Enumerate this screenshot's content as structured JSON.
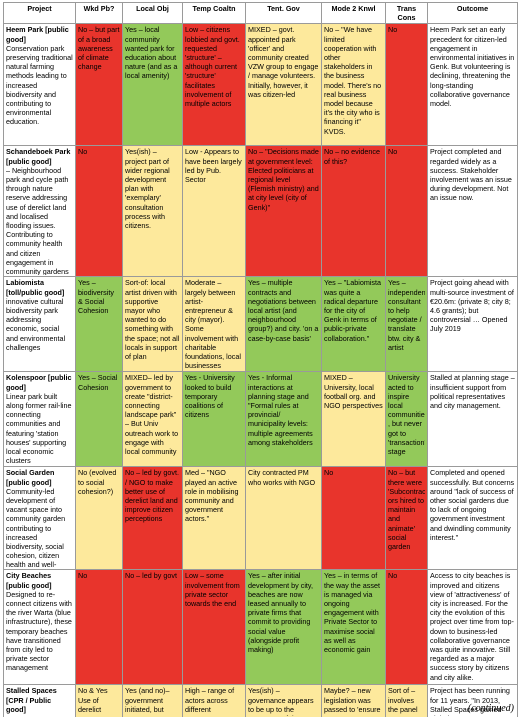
{
  "table": {
    "header": [
      "Project",
      "Wkd Pb?",
      "Local Obj",
      "Temp Coaltn",
      "Tent. Gov",
      "Mode 2 Knwl",
      "Trans Cons",
      "Outcome"
    ],
    "rows": [
      {
        "name": "Heem Park [public good]",
        "description": "Conservation park preserving traditional natural farming methods leading to increased biodiversity and contributing to environmental education.",
        "cells": [
          {
            "text": "No – but part of a broad awareness of climate change",
            "color": "red"
          },
          {
            "text": "Yes – local community wanted park for education about nature (and as a local amenity)",
            "color": "green"
          },
          {
            "text": "Low – citizens lobbied and govt. requested 'structure' – although current 'structure' facilitates involvement of multiple actors",
            "color": "red"
          },
          {
            "text": "MIXED – govt. appointed park 'officer' and community created VZW group to engage / manage volunteers. Initially, however, it was citizen-led",
            "color": "yellow"
          },
          {
            "text": "No – \"We have limited cooperation with other stakeholders in the business model. There's no real business model because it's the city who is financing it\" KVDS.",
            "color": "yellow"
          },
          {
            "text": "No",
            "color": "red"
          }
        ],
        "outcome": "Heem Park set an early precedent for citizen-led engagement in environmental initiatives in Genk. But volunteering is declining, threatening the long-standing collaborative governance model."
      },
      {
        "name": "Schandeboek Park [public good]",
        "description": "– Neighbourhood park and cycle path through nature reserve addressing use of derelict land and localised flooding issues. Contributing to community health and citizen engagement in community gardens",
        "cells": [
          {
            "text": "No",
            "color": "red"
          },
          {
            "text": "Yes(ish) – project part of wider regional development plan with 'exemplary' consultation process with citizens.",
            "color": "yellow"
          },
          {
            "text": "Low - Appears to have been largely led by Pub. Sector",
            "color": "yellow"
          },
          {
            "text": "No – \"Decisions made at government level: Elected politicians at regional level (Flemish ministry) and at city level (city of Genk)\"",
            "color": "red"
          },
          {
            "text": "No – no evidence of this?",
            "color": "red"
          },
          {
            "text": "No",
            "color": "red"
          }
        ],
        "outcome": "Project completed and regarded widely as a success. Stakeholder involvement was an issue during development. Not an issue now."
      },
      {
        "name": "Labiomista [toll/public good]",
        "description": "innovative cultural biodiversity park addressing economic, social and environmental challenges",
        "cells": [
          {
            "text": "Yes – biodiversity & Social Cohesion",
            "color": "green"
          },
          {
            "text": "Sort-of: local artist driven with supportive mayor who wanted to do something with the space; not all locals in support of plan",
            "color": "yellow"
          },
          {
            "text": "Moderate – largely between artist-entrepreneur & city (mayor). Some involvement with charitable foundations, local businesses",
            "color": "yellow"
          },
          {
            "text": "Yes – multiple contracts and negotiations between local artist (and neighbourhood group?) and city. 'on a case-by-case basis'",
            "color": "green"
          },
          {
            "text": "Yes – \"Labiomista was quite a radical departure for the city of Genk in terms of public-private collaboration.\"",
            "color": "green"
          },
          {
            "text": "Yes – independent consultant to help negotiate / translate btw. city & artist",
            "color": "green"
          }
        ],
        "outcome": "Project going ahead with multi-source investment of €20.6m: (private 8; city 8; 4.6 grants); but controversial … Opened July 2019"
      },
      {
        "name": "Kolenspoor [public good]",
        "description": "Linear park built along former rail-line connecting communities and featuring 'station houses' supporting local economic clusters",
        "cells": [
          {
            "text": "Yes – Social Cohesion",
            "color": "green"
          },
          {
            "text": "MIXED– led by government to create \"district-connecting landscape park\" – But Univ outreach work to engage with local community",
            "color": "yellow"
          },
          {
            "text": "Yes - University looked to build temporary coalitions of citizens",
            "color": "green"
          },
          {
            "text": "Yes - Informal interactions at planning stage and \"Formal rules at provincial/ municipality levels: multiple agreements among stakeholders",
            "color": "green"
          },
          {
            "text": "MIXED – University, local football org. and NGO perspectives",
            "color": "yellow"
          },
          {
            "text": "University acted to inspire local communities , but never got to 'transaction' stage",
            "color": "green"
          }
        ],
        "outcome": "Stalled at planning stage – insufficient support from political representatives and city management."
      },
      {
        "name": "Social Garden [public good]",
        "description": "Community-led development of vacant space into community garden contributing to increased biodiversity, social cohesion, citizen health and well-being",
        "cells": [
          {
            "text": "No (evolved to social cohesion?)",
            "color": "yellow"
          },
          {
            "text": "No – led by govt. / NGO to make better use of derelict land and improve citizen perceptions",
            "color": "red"
          },
          {
            "text": "Med – \"NGO played an active role in mobilising community and government actors.\"",
            "color": "yellow"
          },
          {
            "text": "City contracted PM who works with NGO",
            "color": "yellow"
          },
          {
            "text": "No",
            "color": "red"
          },
          {
            "text": "No – but there were 'Subcontract ors hired to maintain and animate' social garden",
            "color": "red"
          }
        ],
        "outcome": "Completed and opened successfully. But concerns around \"lack of success of other social gardens due to lack of ongoing government investment and dwindling community interest.\""
      },
      {
        "name": "City Beaches [public good]",
        "description": "Designed to re-connect citizens with the river Warta (blue infrastructure), these temporary beaches have transitioned from city led to private sector management",
        "cells": [
          {
            "text": "No",
            "color": "red"
          },
          {
            "text": "No – led by govt",
            "color": "red"
          },
          {
            "text": "Low – some involvement from private sector towards the end",
            "color": "red"
          },
          {
            "text": "Yes – after initial development by city, beaches are now leased annually to private firms that commit to providing social value (alongside profit making)",
            "color": "green"
          },
          {
            "text": "Yes – in terms of the way the asset is managed via ongoing engagement with Private Sector to maximise social as well as economic gain",
            "color": "green"
          },
          {
            "text": "No",
            "color": "red"
          }
        ],
        "outcome": "Access to city beaches is improved and citizens view of 'attractiveness' of city is increased. For the city the evolution of this project over time from top-down to business-led collaborative governance was quite innovative. Still regarded as a major success story by citizens and city alike."
      },
      {
        "name": "Stalled Spaces [CPR / Public good]",
        "description": "",
        "cells": [
          {
            "text": "No & Yes Use of derelict",
            "color": "yellow"
          },
          {
            "text": "Yes (and no)– government initiated, but",
            "color": "yellow"
          },
          {
            "text": "High – range of actors across different",
            "color": "yellow"
          },
          {
            "text": "Yes(ish) – governance appears to be up to the proposers of the",
            "color": "yellow"
          },
          {
            "text": "Maybe? – new legislation was passed to 'ensure",
            "color": "yellow"
          },
          {
            "text": "Sort of – involves the panel",
            "color": "yellow"
          }
        ],
        "outcome": "Project has been running for 11 years. \"In 2013, Stalled Spaces gained global"
      }
    ],
    "footer": "(continued)"
  }
}
